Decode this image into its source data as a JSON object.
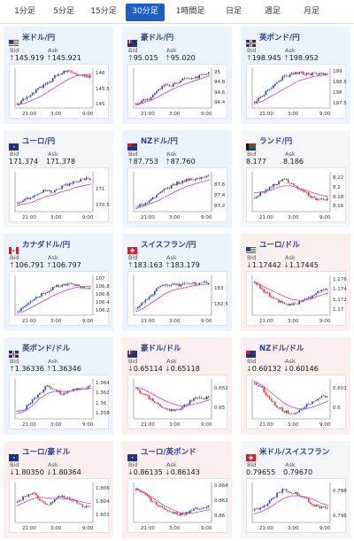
{
  "tabs": [
    "1分足",
    "5分足",
    "15分足",
    "30分足",
    "1時間足",
    "日足",
    "週足",
    "月足"
  ],
  "active_tab": 3,
  "labels": {
    "bid": "Bid",
    "ask": "Ask"
  },
  "colors": {
    "up_arrow": "#0a9a3e",
    "down_arrow": "#d0202e",
    "candle_up": "#1f3fa8",
    "candle_down": "#e03030",
    "ma_line": "#c83ac8",
    "active_tab": "#1f5fc2"
  },
  "pairs": [
    {
      "name": "米ドル/円",
      "flag": "us",
      "dir": "up",
      "bid": "145.919",
      "ask": "145.921",
      "yticks": [
        "146",
        "145.5",
        "145"
      ],
      "xticks": [
        "21:00",
        "3:00",
        "9:00"
      ],
      "ymin": 144.9,
      "ymax": 146.2,
      "trend": [
        145.05,
        145.2,
        145.35,
        145.55,
        145.7,
        145.9,
        146.05,
        146.1,
        146.0,
        145.95,
        145.92
      ],
      "ma": [
        145.0,
        145.05,
        145.15,
        145.25,
        145.4,
        145.55,
        145.7,
        145.85,
        145.95,
        145.98,
        146.0
      ]
    },
    {
      "name": "豪ドル/円",
      "flag": "au",
      "dir": "up",
      "bid": "95.015",
      "ask": "95.020",
      "yticks": [
        "95",
        "94.8",
        "94.6",
        "94.4"
      ],
      "xticks": [
        "21:00",
        "3:00",
        "9:00"
      ],
      "ymin": 94.3,
      "ymax": 95.1,
      "trend": [
        94.4,
        94.45,
        94.5,
        94.65,
        94.8,
        94.75,
        94.85,
        94.9,
        94.92,
        94.95,
        95.01
      ],
      "ma": [
        94.35,
        94.4,
        94.45,
        94.52,
        94.6,
        94.68,
        94.74,
        94.8,
        94.85,
        94.9,
        94.95
      ]
    },
    {
      "name": "英ポンド/円",
      "flag": "uk",
      "dir": "up",
      "bid": "198.945",
      "ask": "198.952",
      "yticks": [
        "199",
        "198.5",
        "198",
        "197.5"
      ],
      "xticks": [
        "21:00",
        "3:00",
        "9:00"
      ],
      "ymin": 197.3,
      "ymax": 199.2,
      "trend": [
        197.6,
        197.9,
        198.2,
        198.5,
        198.8,
        198.9,
        199.0,
        198.9,
        198.95,
        198.9,
        198.95
      ],
      "ma": [
        197.5,
        197.6,
        197.8,
        198.0,
        198.2,
        198.4,
        198.6,
        198.7,
        198.8,
        198.85,
        198.9
      ]
    },
    {
      "name": "ユーロ/円",
      "flag": "eu",
      "dir": "none",
      "bid": "171.374",
      "ask": "171.378",
      "yticks": [
        "171",
        "170.5"
      ],
      "xticks": [
        "21:00",
        "3:00",
        "9:00"
      ],
      "ymin": 170.3,
      "ymax": 171.6,
      "trend": [
        170.6,
        170.7,
        170.8,
        170.9,
        171.0,
        170.95,
        171.1,
        171.2,
        171.3,
        171.35,
        171.37
      ],
      "ma": [
        170.5,
        170.55,
        170.6,
        170.7,
        170.8,
        170.85,
        170.95,
        171.0,
        171.1,
        171.15,
        171.2
      ]
    },
    {
      "name": "NZドル/円",
      "flag": "nz",
      "dir": "up",
      "bid": "87.753",
      "ask": "87.760",
      "yticks": [
        "87.6",
        "87.4",
        "87.2"
      ],
      "xticks": [
        "21:00",
        "3:00",
        "9:00"
      ],
      "ymin": 87.1,
      "ymax": 87.85,
      "trend": [
        87.2,
        87.25,
        87.3,
        87.45,
        87.5,
        87.6,
        87.65,
        87.7,
        87.72,
        87.74,
        87.75
      ],
      "ma": [
        87.15,
        87.2,
        87.25,
        87.3,
        87.38,
        87.45,
        87.52,
        87.58,
        87.62,
        87.66,
        87.7
      ]
    },
    {
      "name": "ランド/円",
      "flag": "za",
      "dir": "none",
      "bid": "8.177",
      "ask": "8.186",
      "yticks": [
        "8.22",
        "8.2",
        "8.18",
        "8.16"
      ],
      "xticks": [
        "21:00",
        "3:00",
        "9:00"
      ],
      "ymin": 8.15,
      "ymax": 8.235,
      "trend": [
        8.18,
        8.19,
        8.2,
        8.21,
        8.22,
        8.21,
        8.2,
        8.19,
        8.18,
        8.175,
        8.177
      ],
      "ma": [
        8.19,
        8.192,
        8.195,
        8.2,
        8.205,
        8.205,
        8.2,
        8.195,
        8.19,
        8.185,
        8.182
      ]
    },
    {
      "name": "カナダドル/円",
      "flag": "ca",
      "dir": "up",
      "bid": "106.791",
      "ask": "106.797",
      "yticks": [
        "107",
        "106.8",
        "106.6",
        "106.4",
        "106.2"
      ],
      "xticks": [
        "21:00",
        "3:00",
        "9:00"
      ],
      "ymin": 106.1,
      "ymax": 107.1,
      "trend": [
        106.2,
        106.3,
        106.45,
        106.6,
        106.7,
        106.8,
        106.85,
        106.9,
        106.85,
        106.8,
        106.79
      ],
      "ma": [
        106.15,
        106.2,
        106.3,
        106.4,
        106.5,
        106.6,
        106.68,
        106.75,
        106.8,
        106.82,
        106.83
      ]
    },
    {
      "name": "スイスフラン/円",
      "flag": "ch",
      "dir": "up",
      "bid": "183.163",
      "ask": "183.179",
      "yticks": [
        "183",
        "182.5"
      ],
      "xticks": [
        "21:00",
        "3:00",
        "9:00"
      ],
      "ymin": 182.2,
      "ymax": 183.4,
      "trend": [
        182.4,
        182.6,
        182.8,
        183.0,
        183.1,
        183.15,
        183.1,
        183.2,
        183.15,
        183.18,
        183.17
      ],
      "ma": [
        182.3,
        182.4,
        182.55,
        182.7,
        182.85,
        182.95,
        183.0,
        183.05,
        183.1,
        183.12,
        183.14
      ]
    },
    {
      "name": "ユーロ/ドル",
      "flag": "us",
      "dir": "down",
      "bid": "1.17442",
      "ask": "1.17445",
      "yticks": [
        "1.176",
        "1.174",
        "1.172",
        "1.17"
      ],
      "xticks": [
        "21:00",
        "3:00",
        "9:00"
      ],
      "ymin": 1.169,
      "ymax": 1.177,
      "trend": [
        1.1755,
        1.174,
        1.173,
        1.172,
        1.1715,
        1.171,
        1.1715,
        1.172,
        1.173,
        1.1738,
        1.1744
      ],
      "ma": [
        1.1758,
        1.175,
        1.1742,
        1.1735,
        1.1728,
        1.1722,
        1.172,
        1.172,
        1.1725,
        1.173,
        1.1735
      ]
    },
    {
      "name": "英ポンド/ドル",
      "flag": "uk",
      "dir": "up",
      "bid": "1.36336",
      "ask": "1.36346",
      "yticks": [
        "1.364",
        "1.362",
        "1.36",
        "1.358"
      ],
      "xticks": [
        "21:00",
        "3:00",
        "9:00"
      ],
      "ymin": 1.357,
      "ymax": 1.365,
      "trend": [
        1.3585,
        1.359,
        1.3605,
        1.362,
        1.3635,
        1.363,
        1.362,
        1.3625,
        1.363,
        1.3632,
        1.3634
      ],
      "ma": [
        1.358,
        1.3585,
        1.3595,
        1.361,
        1.362,
        1.3625,
        1.3625,
        1.3625,
        1.3628,
        1.363,
        1.3631
      ]
    },
    {
      "name": "豪ドル/ドル",
      "flag": "au",
      "dir": "down",
      "bid": "0.65114",
      "ask": "0.65118",
      "yticks": [
        "0.652",
        "0.65"
      ],
      "xticks": [
        "21:00",
        "3:00",
        "9:00"
      ],
      "ymin": 0.649,
      "ymax": 0.653,
      "trend": [
        0.652,
        0.6515,
        0.651,
        0.6505,
        0.65,
        0.6498,
        0.65,
        0.6505,
        0.651,
        0.6511,
        0.6511
      ],
      "ma": [
        0.6522,
        0.652,
        0.6516,
        0.6512,
        0.6508,
        0.6505,
        0.6503,
        0.6503,
        0.6505,
        0.6507,
        0.6509
      ]
    },
    {
      "name": "NZドル/ドル",
      "flag": "nz",
      "dir": "down",
      "bid": "0.60132",
      "ask": "0.60146",
      "yticks": [
        "0.602",
        "0.6"
      ],
      "xticks": [
        "21:00",
        "3:00",
        "9:00"
      ],
      "ymin": 0.599,
      "ymax": 0.603,
      "trend": [
        0.6025,
        0.602,
        0.601,
        0.6002,
        0.5998,
        0.5995,
        0.5998,
        0.6003,
        0.6008,
        0.6012,
        0.6013
      ],
      "ma": [
        0.6028,
        0.6024,
        0.6018,
        0.6012,
        0.6006,
        0.6002,
        0.6,
        0.6,
        0.6002,
        0.6005,
        0.6008
      ]
    },
    {
      "name": "ユーロ/豪ドル",
      "flag": "eu",
      "dir": "down",
      "bid": "1.80350",
      "ask": "1.80364",
      "yticks": [
        "1.806",
        "1.804",
        "1.802"
      ],
      "xticks": [
        "21:00",
        "3:00",
        "9:00"
      ],
      "ymin": 1.801,
      "ymax": 1.807,
      "trend": [
        1.804,
        1.805,
        1.8055,
        1.8045,
        1.8035,
        1.8045,
        1.805,
        1.8045,
        1.804,
        1.8035,
        1.8035
      ],
      "ma": [
        1.8035,
        1.804,
        1.8045,
        1.8048,
        1.8047,
        1.8046,
        1.8046,
        1.8045,
        1.8043,
        1.804,
        1.8038
      ]
    },
    {
      "name": "ユーロ/英ポンド",
      "flag": "eu",
      "dir": "down",
      "bid": "0.86135",
      "ask": "0.86143",
      "yticks": [
        "0.864",
        "0.862",
        "0.86"
      ],
      "xticks": [
        "21:00",
        "3:00",
        "9:00"
      ],
      "ymin": 0.8592,
      "ymax": 0.8645,
      "trend": [
        0.8635,
        0.863,
        0.8622,
        0.8615,
        0.861,
        0.8605,
        0.8602,
        0.8605,
        0.861,
        0.8612,
        0.8613
      ],
      "ma": [
        0.8638,
        0.8633,
        0.8627,
        0.862,
        0.8614,
        0.8609,
        0.8605,
        0.8604,
        0.8605,
        0.8607,
        0.8609
      ]
    },
    {
      "name": "米ドル/スイスフラン",
      "flag": "ch",
      "dir": "none",
      "bid": "0.79655",
      "ask": "0.79670",
      "yticks": [
        "0.798",
        "0.796"
      ],
      "xticks": [
        "21:00",
        "3:00",
        "9:00"
      ],
      "ymin": 0.7955,
      "ymax": 0.7988,
      "trend": [
        0.7965,
        0.7968,
        0.7972,
        0.7978,
        0.7982,
        0.798,
        0.7978,
        0.7975,
        0.797,
        0.7968,
        0.7966
      ],
      "ma": [
        0.7962,
        0.7964,
        0.7967,
        0.7971,
        0.7975,
        0.7977,
        0.7977,
        0.7976,
        0.7974,
        0.7971,
        0.7969
      ]
    }
  ]
}
